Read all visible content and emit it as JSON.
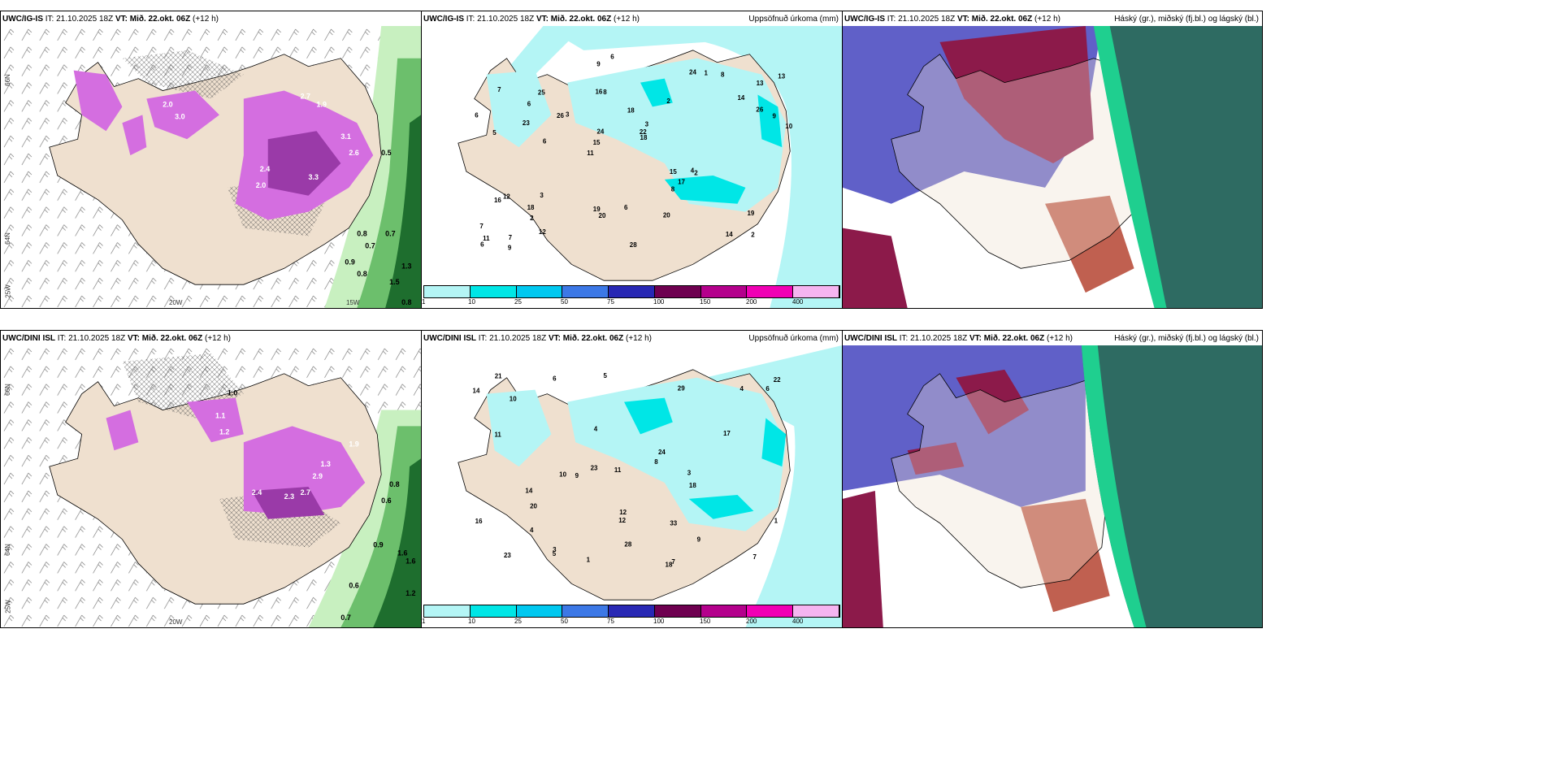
{
  "panels": [
    {
      "model": "UWC/IG-IS",
      "it": "IT: 21.10.2025 18Z",
      "vt": "VT: Mið. 22.okt. 06Z",
      "lead": "(+12 h)",
      "right": ""
    },
    {
      "model": "UWC/IG-IS",
      "it": "IT: 21.10.2025 18Z",
      "vt": "VT: Mið. 22.okt. 06Z",
      "lead": "(+12 h)",
      "right": "Uppsöfnuð úrkoma (mm)"
    },
    {
      "model": "UWC/IG-IS",
      "it": "IT: 21.10.2025 18Z",
      "vt": "VT: Mið. 22.okt. 06Z",
      "lead": "(+12 h)",
      "right": "Háský (gr.), miðský (fj.bl.) og lágský (bl.)"
    },
    {
      "model": "UWC/DINI ISL",
      "it": "IT: 21.10.2025 18Z",
      "vt": "VT: Mið. 22.okt. 06Z",
      "lead": "(+12 h)",
      "right": ""
    },
    {
      "model": "UWC/DINI ISL",
      "it": "IT: 21.10.2025 18Z",
      "vt": "VT: Mið. 22.okt. 06Z",
      "lead": "(+12 h)",
      "right": "Uppsöfnuð úrkoma (mm)"
    },
    {
      "model": "UWC/DINI ISL",
      "it": "IT: 21.10.2025 18Z",
      "vt": "VT: Mið. 22.okt. 06Z",
      "lead": "(+12 h)",
      "right": "Háský (gr.), miðský (fj.bl.) og lágský (bl.)"
    }
  ],
  "axis": {
    "lat66": "66N",
    "lat64": "64N",
    "lon20": "20W",
    "lon15": "15W",
    "lon25": "25W"
  },
  "legend": {
    "ticks": [
      "1",
      "10",
      "25",
      "50",
      "75",
      "100",
      "150",
      "200",
      "400"
    ],
    "colors": [
      "#b4f5f5",
      "#00e6e6",
      "#00c8f0",
      "#3c78e6",
      "#2828b4",
      "#6e0050",
      "#b4008c",
      "#f000b4",
      "#f5b4f0"
    ]
  },
  "precip_top": [
    "2",
    "5",
    "13",
    "11",
    "2",
    "7",
    "16",
    "18",
    "12",
    "3",
    "7",
    "2",
    "8",
    "3",
    "2",
    "7",
    "9",
    "10",
    "15",
    "26",
    "15",
    "19",
    "24",
    "25",
    "24",
    "3",
    "14",
    "19",
    "4",
    "28",
    "26",
    "23",
    "8",
    "12",
    "9",
    "22",
    "11",
    "20",
    "18",
    "16",
    "14",
    "13",
    "17",
    "20",
    "18",
    "9",
    "6",
    "6",
    "8",
    "6",
    "6",
    "6",
    "6",
    "1"
  ],
  "precip_bot": [
    "1",
    "18",
    "3",
    "9",
    "6",
    "10",
    "10",
    "7",
    "5",
    "4",
    "4",
    "28",
    "23",
    "12",
    "29",
    "8",
    "11",
    "5",
    "9",
    "14",
    "33",
    "22",
    "24",
    "23",
    "17",
    "14",
    "16",
    "20",
    "21",
    "18",
    "11",
    "7",
    "12",
    "6",
    "4",
    "3",
    "1"
  ],
  "snow_top": [
    "2.0",
    "3.0",
    "2.7",
    "1.9",
    "3.1",
    "2.0",
    "2.4",
    "3.3",
    "2.6",
    "0.5",
    "0.8",
    "0.7",
    "0.7",
    "0.9",
    "0.8",
    "1.5",
    "1.3",
    "0.8"
  ],
  "snow_bot": [
    "1.0",
    "1.1",
    "1.2",
    "2.4",
    "2.3",
    "2.7",
    "1.3",
    "2.9",
    "1.9",
    "0.8",
    "0.6",
    "1.6",
    "1.6",
    "1.2",
    "0.9",
    "0.7",
    "0.6"
  ]
}
